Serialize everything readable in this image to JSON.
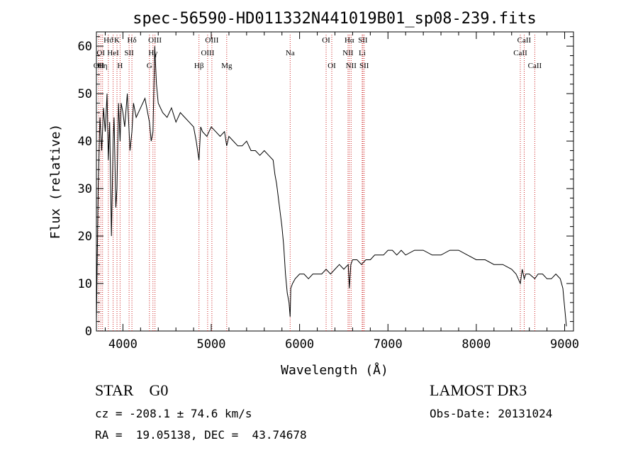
{
  "chart_data": {
    "type": "line",
    "title": "spec-56590-HD011332N441019B01_sp08-239.fits",
    "xlabel": "Wavelength (Å)",
    "ylabel": "Flux (relative)",
    "xlim": [
      3700,
      9100
    ],
    "ylim": [
      0,
      63
    ],
    "x_ticks": [
      4000,
      5000,
      6000,
      7000,
      8000,
      9000
    ],
    "y_ticks": [
      0,
      10,
      20,
      30,
      40,
      50,
      60
    ],
    "grid": false,
    "series": [
      {
        "x": [
          3700,
          3720,
          3740,
          3760,
          3780,
          3800,
          3820,
          3835,
          3850,
          3870,
          3889,
          3900,
          3920,
          3933,
          3950,
          3968,
          3980,
          4000,
          4020,
          4050,
          4080,
          4102,
          4120,
          4150,
          4200,
          4250,
          4300,
          4320,
          4340,
          4360,
          4380,
          4400,
          4450,
          4500,
          4550,
          4600,
          4650,
          4700,
          4750,
          4800,
          4830,
          4861,
          4880,
          4900,
          4950,
          5000,
          5050,
          5100,
          5150,
          5175,
          5200,
          5250,
          5300,
          5350,
          5400,
          5450,
          5500,
          5550,
          5600,
          5650,
          5700,
          5720,
          5740,
          5760,
          5780,
          5800,
          5820,
          5840,
          5860,
          5880,
          5893,
          5900,
          5920,
          5950,
          6000,
          6050,
          6100,
          6150,
          6200,
          6250,
          6300,
          6350,
          6400,
          6450,
          6500,
          6550,
          6563,
          6580,
          6600,
          6650,
          6700,
          6750,
          6800,
          6850,
          6900,
          6950,
          7000,
          7050,
          7100,
          7150,
          7200,
          7300,
          7400,
          7500,
          7600,
          7700,
          7800,
          7900,
          8000,
          8100,
          8200,
          8300,
          8400,
          8450,
          8498,
          8520,
          8542,
          8560,
          8600,
          8662,
          8700,
          8750,
          8800,
          8850,
          8900,
          8950,
          8980,
          9000,
          9020
        ],
        "y": [
          2,
          30,
          45,
          38,
          47,
          42,
          50,
          36,
          44,
          20,
          40,
          45,
          26,
          30,
          48,
          40,
          48,
          46,
          43,
          50,
          38,
          42,
          48,
          45,
          47,
          49,
          44,
          40,
          42,
          60,
          52,
          48,
          46,
          45,
          47,
          44,
          46,
          45,
          44,
          43,
          40,
          36,
          43,
          42,
          41,
          43,
          42,
          41,
          42,
          39,
          41,
          40,
          39,
          39,
          40,
          38,
          38,
          37,
          38,
          37,
          36,
          33,
          31,
          28,
          25,
          22,
          18,
          12,
          8,
          6,
          3,
          9,
          10,
          11,
          12,
          12,
          11,
          12,
          12,
          12,
          13,
          12,
          13,
          14,
          13,
          14,
          9,
          14,
          15,
          15,
          14,
          15,
          15,
          16,
          16,
          16,
          17,
          17,
          16,
          17,
          16,
          17,
          17,
          16,
          16,
          17,
          17,
          16,
          15,
          15,
          14,
          14,
          13,
          12,
          10,
          13,
          11,
          12,
          12,
          11,
          12,
          12,
          11,
          11,
          12,
          11,
          9,
          5,
          1
        ]
      }
    ],
    "lines": [
      {
        "w": 3727,
        "label": "OII",
        "row": 2
      },
      {
        "w": 3750,
        "label": "OI",
        "row": 1
      },
      {
        "w": 3770,
        "label": "Hη",
        "row": 2
      },
      {
        "w": 3835,
        "label": "Hϑ",
        "row": 0
      },
      {
        "w": 3889,
        "label": "HeI",
        "row": 1
      },
      {
        "w": 3933,
        "label": "K",
        "row": 0
      },
      {
        "w": 3968,
        "label": "H",
        "row": 2
      },
      {
        "w": 4070,
        "label": "SII",
        "row": 1
      },
      {
        "w": 4102,
        "label": "Hδ",
        "row": 0
      },
      {
        "w": 4300,
        "label": "G",
        "row": 2
      },
      {
        "w": 4340,
        "label": "Hγ",
        "row": 1
      },
      {
        "w": 4363,
        "label": "OIII",
        "row": 0
      },
      {
        "w": 4861,
        "label": "Hβ",
        "row": 2
      },
      {
        "w": 4959,
        "label": "OIII",
        "row": 1
      },
      {
        "w": 5007,
        "label": "OIII",
        "row": 0
      },
      {
        "w": 5175,
        "label": "Mg",
        "row": 2
      },
      {
        "w": 5893,
        "label": "Na",
        "row": 1
      },
      {
        "w": 6300,
        "label": "OI",
        "row": 0
      },
      {
        "w": 6364,
        "label": "OI",
        "row": 2
      },
      {
        "w": 6548,
        "label": "NII",
        "row": 1
      },
      {
        "w": 6563,
        "label": "Hα",
        "row": 0
      },
      {
        "w": 6583,
        "label": "NII",
        "row": 2
      },
      {
        "w": 6708,
        "label": "Li",
        "row": 1
      },
      {
        "w": 6716,
        "label": "SII",
        "row": 0
      },
      {
        "w": 6731,
        "label": "SII",
        "row": 2
      },
      {
        "w": 8498,
        "label": "CaII",
        "row": 1
      },
      {
        "w": 8542,
        "label": "CaII",
        "row": 0
      },
      {
        "w": 8662,
        "label": "CaII",
        "row": 2
      }
    ]
  },
  "info": {
    "class_line": "STAR    G0",
    "survey": "LAMOST DR3",
    "cz": "cz = -208.1 ± 74.6 km/s",
    "obs_date": "Obs-Date: 20131024",
    "radec": "RA =  19.05138, DEC =  43.74678"
  }
}
